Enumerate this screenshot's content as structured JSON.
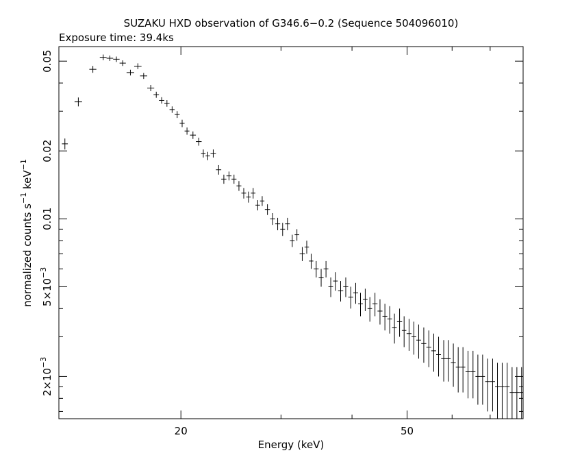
{
  "chart_data": {
    "type": "scatter",
    "title": "SUZAKU HXD observation of G346.6−0.2 (Sequence 504096010)",
    "subtitle": "Exposure time: 39.4ks",
    "xlabel": "Energy (keV)",
    "ylabel_parts": {
      "main": "normalized counts s",
      "exp1": "−1",
      "mid": " keV",
      "exp2": "−1"
    },
    "x_scale": "log",
    "y_scale": "log",
    "xlim": [
      12.2,
      80
    ],
    "ylim": [
      0.0013,
      0.058
    ],
    "x_ticks": [
      {
        "value": 20,
        "label": "20"
      },
      {
        "value": 50,
        "label": "50"
      }
    ],
    "y_ticks": [
      {
        "value": 0.002,
        "label": "2×10",
        "exp": "−3"
      },
      {
        "value": 0.005,
        "label": "5×10",
        "exp": "−3"
      },
      {
        "value": 0.01,
        "label": "0.01",
        "exp": ""
      },
      {
        "value": 0.02,
        "label": "0.02",
        "exp": ""
      },
      {
        "value": 0.05,
        "label": "0.05",
        "exp": ""
      }
    ],
    "series": [
      {
        "x": [
          12.5,
          13.2,
          14.0,
          14.6,
          15.0,
          15.4,
          15.8,
          16.3,
          16.8,
          17.2,
          17.7,
          18.1,
          18.5,
          18.9,
          19.3,
          19.7,
          20.1,
          20.5,
          21.0,
          21.5,
          21.9,
          22.3,
          22.8,
          23.3,
          23.8,
          24.3,
          24.8,
          25.3,
          25.8,
          26.3,
          26.8,
          27.3,
          27.8,
          28.4,
          29.0,
          29.6,
          30.2,
          30.8,
          31.4,
          32.0,
          32.7,
          33.3,
          33.9,
          34.6,
          35.3,
          36.0,
          36.7,
          37.4,
          38.2,
          39.0,
          39.8,
          40.6,
          41.4,
          42.2,
          43.0,
          43.9,
          44.8,
          45.7,
          46.6,
          47.5,
          48.5,
          49.4,
          50.4,
          51.4,
          52.4,
          53.5,
          54.6,
          55.7,
          56.8,
          58.0,
          59.1,
          60.3,
          61.5,
          62.7,
          64.0,
          65.3,
          66.6,
          67.9,
          69.3,
          70.7,
          72.1,
          73.5,
          75.0,
          76.5,
          78.0,
          79.5
        ],
        "y": [
          0.0215,
          0.033,
          0.046,
          0.052,
          0.0515,
          0.051,
          0.049,
          0.0445,
          0.0475,
          0.043,
          0.038,
          0.0355,
          0.0335,
          0.0325,
          0.0305,
          0.029,
          0.0265,
          0.0245,
          0.0235,
          0.022,
          0.0195,
          0.019,
          0.0195,
          0.0165,
          0.015,
          0.0155,
          0.015,
          0.014,
          0.013,
          0.0125,
          0.013,
          0.0115,
          0.012,
          0.011,
          0.01,
          0.0095,
          0.009,
          0.0095,
          0.008,
          0.0085,
          0.007,
          0.0075,
          0.0065,
          0.006,
          0.0055,
          0.006,
          0.005,
          0.0053,
          0.0048,
          0.005,
          0.0045,
          0.0047,
          0.0042,
          0.0044,
          0.004,
          0.0042,
          0.0039,
          0.0037,
          0.0036,
          0.0033,
          0.0035,
          0.0032,
          0.0031,
          0.003,
          0.0029,
          0.0028,
          0.0027,
          0.0026,
          0.0025,
          0.0024,
          0.0024,
          0.0023,
          0.0022,
          0.0022,
          0.0021,
          0.0021,
          0.002,
          0.002,
          0.0019,
          0.0019,
          0.0018,
          0.0018,
          0.0018,
          0.0017,
          0.0017,
          0.0017
        ],
        "yerr": [
          0.0012,
          0.0015,
          0.0016,
          0.0015,
          0.0014,
          0.0014,
          0.0014,
          0.0013,
          0.0014,
          0.0013,
          0.0012,
          0.0011,
          0.0011,
          0.0011,
          0.001,
          0.001,
          0.001,
          0.0009,
          0.0009,
          0.0009,
          0.0008,
          0.0008,
          0.0008,
          0.0008,
          0.0007,
          0.0007,
          0.0007,
          0.0007,
          0.0007,
          0.0007,
          0.0007,
          0.0006,
          0.0006,
          0.0006,
          0.0006,
          0.0006,
          0.0006,
          0.0006,
          0.0005,
          0.0005,
          0.0005,
          0.0005,
          0.0005,
          0.0005,
          0.0005,
          0.0005,
          0.0005,
          0.0005,
          0.0005,
          0.0005,
          0.0005,
          0.0005,
          0.0005,
          0.0005,
          0.0005,
          0.0005,
          0.0005,
          0.0005,
          0.0005,
          0.0005,
          0.0005,
          0.0005,
          0.0005,
          0.0005,
          0.0005,
          0.0005,
          0.0005,
          0.0005,
          0.0005,
          0.0005,
          0.0005,
          0.0005,
          0.0005,
          0.0005,
          0.0005,
          0.0005,
          0.0005,
          0.0005,
          0.0005,
          0.0005,
          0.0005,
          0.0005,
          0.0005,
          0.0005,
          0.0005,
          0.0005
        ],
        "xerr": [
          0.15,
          0.2,
          0.2,
          0.2,
          0.2,
          0.2,
          0.2,
          0.25,
          0.25,
          0.25,
          0.25,
          0.2,
          0.2,
          0.2,
          0.2,
          0.2,
          0.2,
          0.2,
          0.25,
          0.25,
          0.2,
          0.2,
          0.25,
          0.25,
          0.25,
          0.25,
          0.25,
          0.25,
          0.25,
          0.25,
          0.25,
          0.25,
          0.25,
          0.3,
          0.3,
          0.3,
          0.3,
          0.3,
          0.3,
          0.3,
          0.35,
          0.3,
          0.3,
          0.35,
          0.35,
          0.35,
          0.35,
          0.35,
          0.4,
          0.4,
          0.4,
          0.4,
          0.4,
          0.4,
          0.4,
          0.45,
          0.45,
          0.45,
          0.45,
          0.45,
          0.5,
          0.45,
          0.5,
          0.5,
          0.5,
          0.55,
          0.55,
          0.55,
          0.55,
          0.6,
          0.55,
          0.6,
          0.6,
          0.6,
          0.65,
          0.65,
          0.65,
          0.65,
          0.7,
          0.7,
          0.7,
          0.7,
          0.75,
          0.75,
          0.75,
          0.75
        ]
      }
    ],
    "grid": false,
    "colors": {
      "foreground": "#000000",
      "background": "#ffffff"
    }
  }
}
